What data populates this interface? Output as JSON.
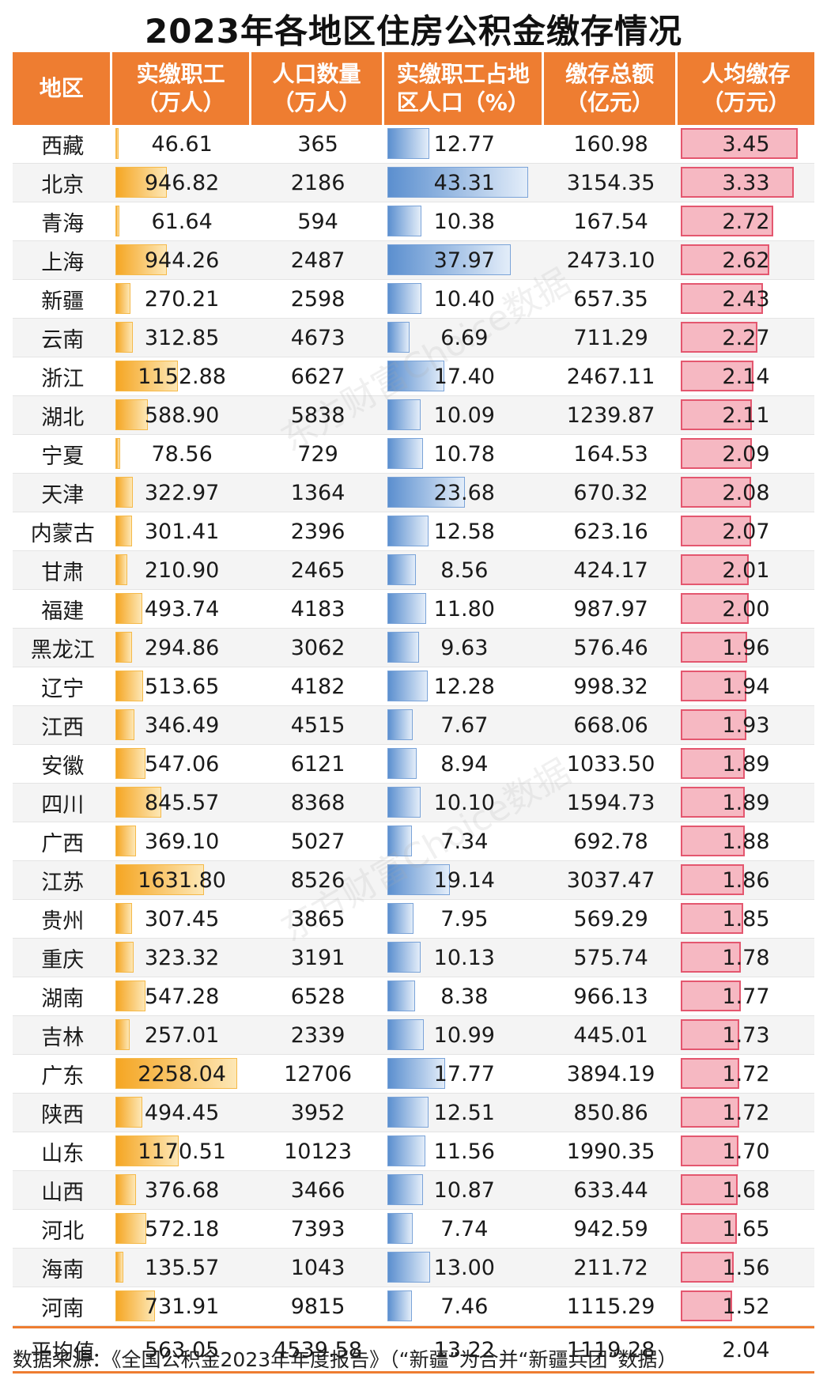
{
  "title": "2023年各地区住房公积金缴存情况",
  "headers": [
    "地区",
    "实缴职工（万人）",
    "人口数量（万人）",
    "实缴职工占地区人口（%）",
    "缴存总额（亿元）",
    "人均缴存（万元）"
  ],
  "colors": {
    "header": "#ee7d31",
    "workers_bar": "#f5a623",
    "ratio_bar": "#5b8fcf",
    "percap_bar": "#f6b8c2",
    "percap_border": "#e4576f"
  },
  "rows": [
    {
      "region": "西藏",
      "workers": "46.61",
      "population": "365",
      "ratio": "12.77",
      "total": "160.98",
      "per_capita": "3.45"
    },
    {
      "region": "北京",
      "workers": "946.82",
      "population": "2186",
      "ratio": "43.31",
      "total": "3154.35",
      "per_capita": "3.33"
    },
    {
      "region": "青海",
      "workers": "61.64",
      "population": "594",
      "ratio": "10.38",
      "total": "167.54",
      "per_capita": "2.72"
    },
    {
      "region": "上海",
      "workers": "944.26",
      "population": "2487",
      "ratio": "37.97",
      "total": "2473.10",
      "per_capita": "2.62"
    },
    {
      "region": "新疆",
      "workers": "270.21",
      "population": "2598",
      "ratio": "10.40",
      "total": "657.35",
      "per_capita": "2.43"
    },
    {
      "region": "云南",
      "workers": "312.85",
      "population": "4673",
      "ratio": "6.69",
      "total": "711.29",
      "per_capita": "2.27"
    },
    {
      "region": "浙江",
      "workers": "1152.88",
      "population": "6627",
      "ratio": "17.40",
      "total": "2467.11",
      "per_capita": "2.14"
    },
    {
      "region": "湖北",
      "workers": "588.90",
      "population": "5838",
      "ratio": "10.09",
      "total": "1239.87",
      "per_capita": "2.11"
    },
    {
      "region": "宁夏",
      "workers": "78.56",
      "population": "729",
      "ratio": "10.78",
      "total": "164.53",
      "per_capita": "2.09"
    },
    {
      "region": "天津",
      "workers": "322.97",
      "population": "1364",
      "ratio": "23.68",
      "total": "670.32",
      "per_capita": "2.08"
    },
    {
      "region": "内蒙古",
      "workers": "301.41",
      "population": "2396",
      "ratio": "12.58",
      "total": "623.16",
      "per_capita": "2.07"
    },
    {
      "region": "甘肃",
      "workers": "210.90",
      "population": "2465",
      "ratio": "8.56",
      "total": "424.17",
      "per_capita": "2.01"
    },
    {
      "region": "福建",
      "workers": "493.74",
      "population": "4183",
      "ratio": "11.80",
      "total": "987.97",
      "per_capita": "2.00"
    },
    {
      "region": "黑龙江",
      "workers": "294.86",
      "population": "3062",
      "ratio": "9.63",
      "total": "576.46",
      "per_capita": "1.96"
    },
    {
      "region": "辽宁",
      "workers": "513.65",
      "population": "4182",
      "ratio": "12.28",
      "total": "998.32",
      "per_capita": "1.94"
    },
    {
      "region": "江西",
      "workers": "346.49",
      "population": "4515",
      "ratio": "7.67",
      "total": "668.06",
      "per_capita": "1.93"
    },
    {
      "region": "安徽",
      "workers": "547.06",
      "population": "6121",
      "ratio": "8.94",
      "total": "1033.50",
      "per_capita": "1.89"
    },
    {
      "region": "四川",
      "workers": "845.57",
      "population": "8368",
      "ratio": "10.10",
      "total": "1594.73",
      "per_capita": "1.89"
    },
    {
      "region": "广西",
      "workers": "369.10",
      "population": "5027",
      "ratio": "7.34",
      "total": "692.78",
      "per_capita": "1.88"
    },
    {
      "region": "江苏",
      "workers": "1631.80",
      "population": "8526",
      "ratio": "19.14",
      "total": "3037.47",
      "per_capita": "1.86"
    },
    {
      "region": "贵州",
      "workers": "307.45",
      "population": "3865",
      "ratio": "7.95",
      "total": "569.29",
      "per_capita": "1.85"
    },
    {
      "region": "重庆",
      "workers": "323.32",
      "population": "3191",
      "ratio": "10.13",
      "total": "575.74",
      "per_capita": "1.78"
    },
    {
      "region": "湖南",
      "workers": "547.28",
      "population": "6528",
      "ratio": "8.38",
      "total": "966.13",
      "per_capita": "1.77"
    },
    {
      "region": "吉林",
      "workers": "257.01",
      "population": "2339",
      "ratio": "10.99",
      "total": "445.01",
      "per_capita": "1.73"
    },
    {
      "region": "广东",
      "workers": "2258.04",
      "population": "12706",
      "ratio": "17.77",
      "total": "3894.19",
      "per_capita": "1.72"
    },
    {
      "region": "陕西",
      "workers": "494.45",
      "population": "3952",
      "ratio": "12.51",
      "total": "850.86",
      "per_capita": "1.72"
    },
    {
      "region": "山东",
      "workers": "1170.51",
      "population": "10123",
      "ratio": "11.56",
      "total": "1990.35",
      "per_capita": "1.70"
    },
    {
      "region": "山西",
      "workers": "376.68",
      "population": "3466",
      "ratio": "10.87",
      "total": "633.44",
      "per_capita": "1.68"
    },
    {
      "region": "河北",
      "workers": "572.18",
      "population": "7393",
      "ratio": "7.74",
      "total": "942.59",
      "per_capita": "1.65"
    },
    {
      "region": "海南",
      "workers": "135.57",
      "population": "1043",
      "ratio": "13.00",
      "total": "211.72",
      "per_capita": "1.56"
    },
    {
      "region": "河南",
      "workers": "731.91",
      "population": "9815",
      "ratio": "7.46",
      "total": "1115.29",
      "per_capita": "1.52"
    }
  ],
  "average": {
    "label": "平均值",
    "workers": "563.05",
    "population": "4539.58",
    "ratio": "13.22",
    "total": "1119.28",
    "per_capita": "2.04"
  },
  "source": "数据来源：《全国公积金2023年年度报告》（“新疆”为合并“新疆兵团”数据）",
  "watermark": "东方财富Choice数据",
  "chart_data": {
    "type": "table",
    "title": "2023年各地区住房公积金缴存情况",
    "columns": [
      "地区",
      "实缴职工（万人）",
      "人口数量（万人）",
      "实缴职工占地区人口（%）",
      "缴存总额（亿元）",
      "人均缴存（万元）"
    ],
    "bar_columns": [
      "实缴职工（万人）",
      "实缴职工占地区人口（%）",
      "人均缴存（万元）"
    ],
    "categories": [
      "西藏",
      "北京",
      "青海",
      "上海",
      "新疆",
      "云南",
      "浙江",
      "湖北",
      "宁夏",
      "天津",
      "内蒙古",
      "甘肃",
      "福建",
      "黑龙江",
      "辽宁",
      "江西",
      "安徽",
      "四川",
      "广西",
      "江苏",
      "贵州",
      "重庆",
      "湖南",
      "吉林",
      "广东",
      "陕西",
      "山东",
      "山西",
      "河北",
      "海南",
      "河南"
    ],
    "series": [
      {
        "name": "实缴职工（万人）",
        "values": [
          46.61,
          946.82,
          61.64,
          944.26,
          270.21,
          312.85,
          1152.88,
          588.9,
          78.56,
          322.97,
          301.41,
          210.9,
          493.74,
          294.86,
          513.65,
          346.49,
          547.06,
          845.57,
          369.1,
          1631.8,
          307.45,
          323.32,
          547.28,
          257.01,
          2258.04,
          494.45,
          1170.51,
          376.68,
          572.18,
          135.57,
          731.91
        ]
      },
      {
        "name": "人口数量（万人）",
        "values": [
          365,
          2186,
          594,
          2487,
          2598,
          4673,
          6627,
          5838,
          729,
          1364,
          2396,
          2465,
          4183,
          3062,
          4182,
          4515,
          6121,
          8368,
          5027,
          8526,
          3865,
          3191,
          6528,
          2339,
          12706,
          3952,
          10123,
          3466,
          7393,
          1043,
          9815
        ]
      },
      {
        "name": "实缴职工占地区人口（%）",
        "values": [
          12.77,
          43.31,
          10.38,
          37.97,
          10.4,
          6.69,
          17.4,
          10.09,
          10.78,
          23.68,
          12.58,
          8.56,
          11.8,
          9.63,
          12.28,
          7.67,
          8.94,
          10.1,
          7.34,
          19.14,
          7.95,
          10.13,
          8.38,
          10.99,
          17.77,
          12.51,
          11.56,
          10.87,
          7.74,
          13.0,
          7.46
        ]
      },
      {
        "name": "缴存总额（亿元）",
        "values": [
          160.98,
          3154.35,
          167.54,
          2473.1,
          657.35,
          711.29,
          2467.11,
          1239.87,
          164.53,
          670.32,
          623.16,
          424.17,
          987.97,
          576.46,
          998.32,
          668.06,
          1033.5,
          1594.73,
          692.78,
          3037.47,
          569.29,
          575.74,
          966.13,
          445.01,
          3894.19,
          850.86,
          1990.35,
          633.44,
          942.59,
          211.72,
          1115.29
        ]
      },
      {
        "name": "人均缴存（万元）",
        "values": [
          3.45,
          3.33,
          2.72,
          2.62,
          2.43,
          2.27,
          2.14,
          2.11,
          2.09,
          2.08,
          2.07,
          2.01,
          2.0,
          1.96,
          1.94,
          1.93,
          1.89,
          1.89,
          1.88,
          1.86,
          1.85,
          1.78,
          1.77,
          1.73,
          1.72,
          1.72,
          1.7,
          1.68,
          1.65,
          1.56,
          1.52
        ]
      }
    ],
    "average": {
      "实缴职工（万人）": 563.05,
      "人口数量（万人）": 4539.58,
      "实缴职工占地区人口（%）": 13.22,
      "缴存总额（亿元）": 1119.28,
      "人均缴存（万元）": 2.04
    }
  }
}
